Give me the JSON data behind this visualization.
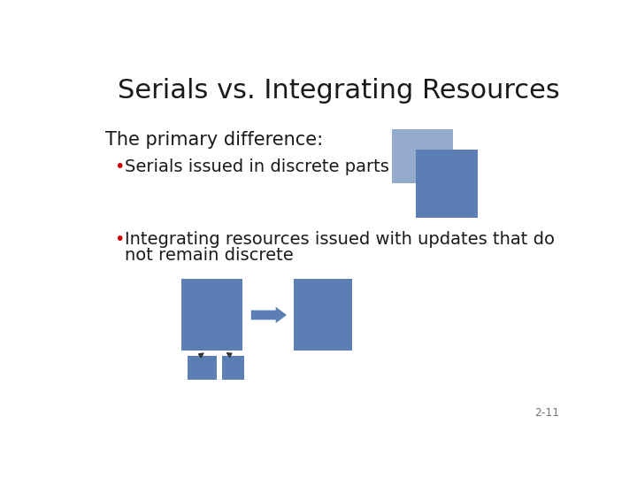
{
  "title": "Serials vs. Integrating Resources",
  "subtitle": "The primary difference:",
  "bullet1": "Serials issued in discrete parts",
  "bullet2_line1": "Integrating resources issued with updates that do",
  "bullet2_line2": "not remain discrete",
  "footnote": "2-11",
  "bg_color": "#ffffff",
  "title_fontsize": 22,
  "body_fontsize": 14,
  "subtitle_fontsize": 15,
  "bullet_color": "#cc0000",
  "box_color": "#5b7fb5",
  "footnote_fontsize": 9,
  "text_color": "#1a1a1a",
  "arrow_color": "#333333"
}
